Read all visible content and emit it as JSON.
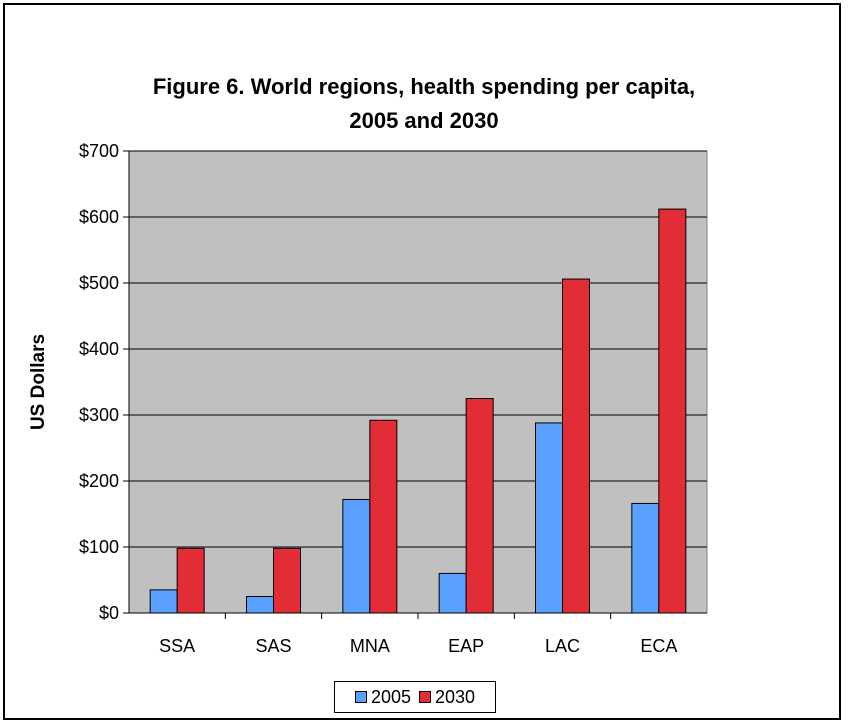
{
  "chart_data": {
    "type": "bar",
    "title_lines": [
      "Figure 6. World regions, health spending per capita,",
      "2005 and 2030"
    ],
    "xlabel": "",
    "ylabel": "US Dollars",
    "categories": [
      "SSA",
      "SAS",
      "MNA",
      "EAP",
      "LAC",
      "ECA"
    ],
    "series": [
      {
        "name": "2005",
        "color": "#5aa0ff",
        "values": [
          35,
          25,
          172,
          60,
          288,
          166
        ]
      },
      {
        "name": "2030",
        "color": "#e22d36",
        "values": [
          98,
          98,
          292,
          325,
          506,
          612
        ]
      }
    ],
    "ylim": [
      0,
      700
    ],
    "yticks": [
      0,
      100,
      200,
      300,
      400,
      500,
      600,
      700
    ],
    "ytick_labels": [
      "$0",
      "$100",
      "$200",
      "$300",
      "$400",
      "$500",
      "$600",
      "$700"
    ],
    "grid": true,
    "legend_position": "bottom",
    "plot_background": "#c0c0c0"
  }
}
